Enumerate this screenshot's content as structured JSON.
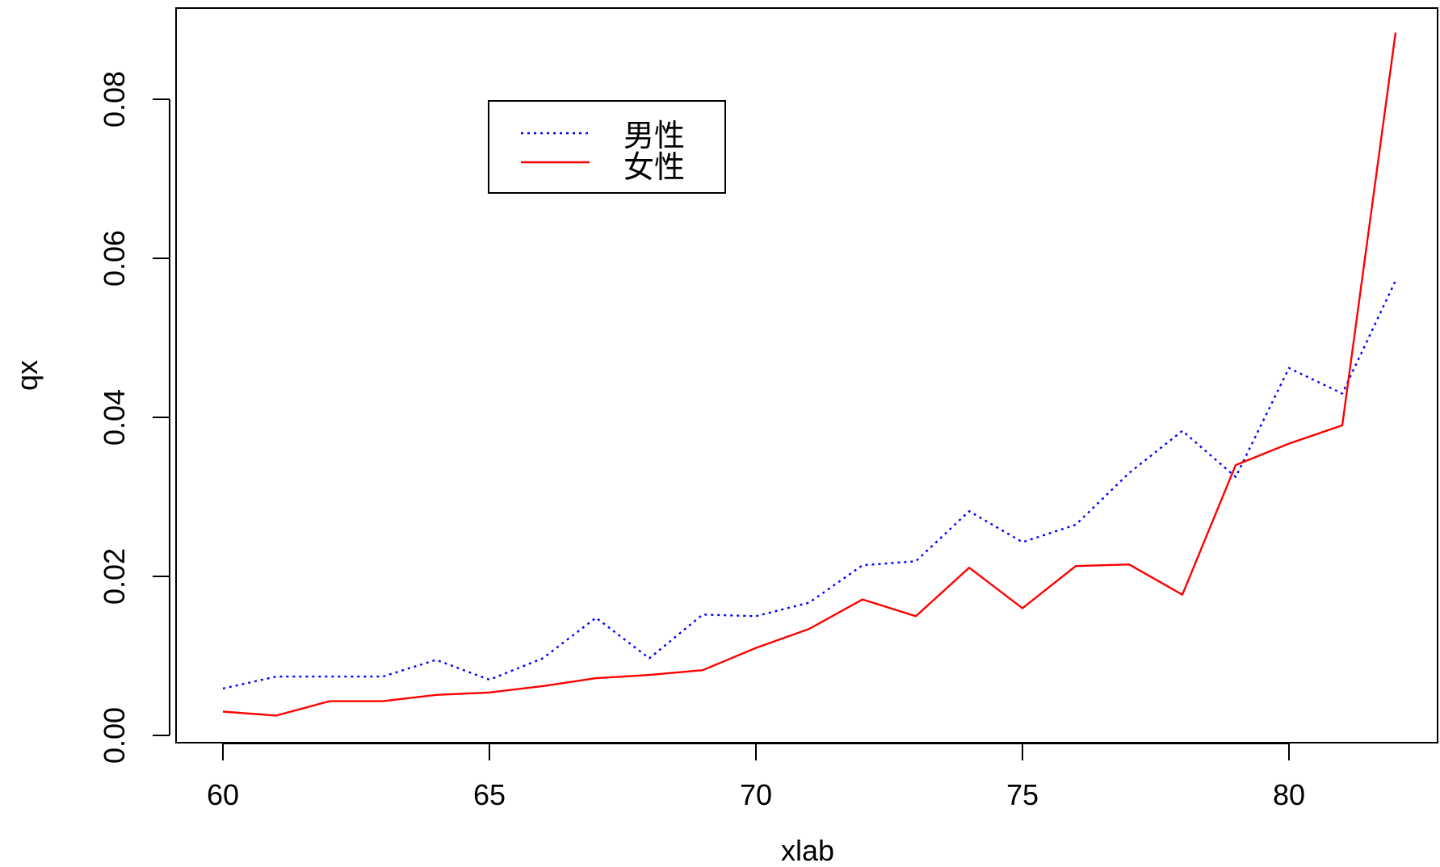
{
  "chart_data": {
    "type": "line",
    "title": "",
    "xlabel": "xlab",
    "ylabel": "qx",
    "xlim": [
      60,
      82
    ],
    "ylim": [
      0,
      0.092
    ],
    "x_ticks": [
      "60",
      "65",
      "70",
      "75",
      "80"
    ],
    "x_tick_values": [
      60,
      65,
      70,
      75,
      80
    ],
    "y_ticks": [
      "0.00",
      "0.02",
      "0.04",
      "0.06",
      "0.08"
    ],
    "y_tick_values": [
      0,
      0.02,
      0.04,
      0.06,
      0.08
    ],
    "grid": false,
    "legend_position": "top-center-left",
    "x": [
      60,
      61,
      62,
      63,
      64,
      65,
      66,
      67,
      68,
      69,
      70,
      71,
      72,
      73,
      74,
      75,
      76,
      77,
      78,
      79,
      80,
      81,
      82
    ],
    "series": [
      {
        "name": "男性",
        "color": "#0000ff",
        "style": "dotted",
        "values": [
          0.0059,
          0.0074,
          0.0074,
          0.0074,
          0.0095,
          0.007,
          0.0097,
          0.0148,
          0.0097,
          0.0152,
          0.015,
          0.0167,
          0.0214,
          0.0219,
          0.0282,
          0.0243,
          0.0265,
          0.033,
          0.0383,
          0.0325,
          0.0462,
          0.043,
          0.0572
        ]
      },
      {
        "name": "女性",
        "color": "#ff0000",
        "style": "solid",
        "values": [
          0.003,
          0.0025,
          0.0043,
          0.0043,
          0.0051,
          0.0054,
          0.0062,
          0.0072,
          0.0076,
          0.0082,
          0.011,
          0.0134,
          0.0171,
          0.015,
          0.0211,
          0.016,
          0.0213,
          0.0215,
          0.0177,
          0.034,
          0.0367,
          0.039,
          0.0884
        ]
      }
    ]
  }
}
